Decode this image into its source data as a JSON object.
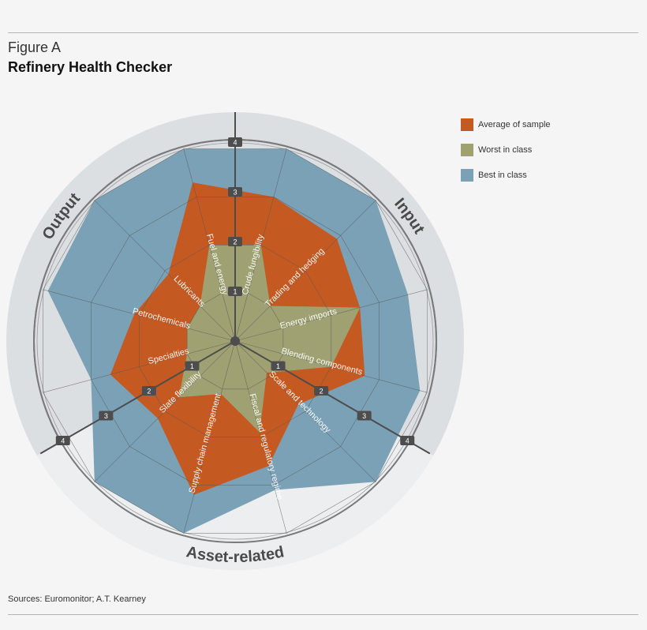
{
  "figure": {
    "label": "Figure A",
    "title": "Refinery Health Checker",
    "sources": "Sources: Euromonitor; A.T. Kearney"
  },
  "legend": [
    {
      "label": "Average of sample",
      "color": "#c45a22"
    },
    {
      "label": "Worst in class",
      "color": "#9fa173"
    },
    {
      "label": "Best in class",
      "color": "#7ba1b7"
    }
  ],
  "sections": [
    {
      "label": "Input"
    },
    {
      "label": "Asset-related"
    },
    {
      "label": "Output"
    }
  ],
  "ticks": [
    "1",
    "2",
    "3",
    "4"
  ],
  "chart_data": {
    "type": "radar",
    "title": "Refinery Health Checker",
    "categories": [
      "Crude fungibility",
      "Trading and hedging",
      "Energy imports",
      "Blending components",
      "Scale and technology",
      "Fiscal and regulatory regime",
      "Supply chain management",
      "Slate flexibility",
      "Specialties",
      "Petrochemicals",
      "Lubricants",
      "Fuel and energy"
    ],
    "groups": {
      "Input": [
        "Crude fungibility",
        "Trading and hedging",
        "Energy imports",
        "Blending components"
      ],
      "Asset-related": [
        "Scale and technology",
        "Fiscal and regulatory regime",
        "Supply chain management",
        "Slate flexibility"
      ],
      "Output": [
        "Specialties",
        "Petrochemicals",
        "Lubricants",
        "Fuel and energy"
      ]
    },
    "series": [
      {
        "name": "Best in class",
        "color": "#7ba1b7",
        "values": [
          4.0,
          4.0,
          3.6,
          3.85,
          4.0,
          3.1,
          4.0,
          4.0,
          3.0,
          3.9,
          4.0,
          4.0
        ]
      },
      {
        "name": "Average of sample",
        "color": "#c45a22",
        "values": [
          3.0,
          2.9,
          2.6,
          2.7,
          1.8,
          2.6,
          3.2,
          2.2,
          2.6,
          2.1,
          1.9,
          3.3
        ]
      },
      {
        "name": "Worst in class",
        "color": "#9fa173",
        "values": [
          2.0,
          1.0,
          2.6,
          2.0,
          0.9,
          1.9,
          1.1,
          1.6,
          1.0,
          1.0,
          1.0,
          2.0
        ]
      }
    ],
    "rlim": [
      0,
      4
    ],
    "rticks": [
      1,
      2,
      3,
      4
    ],
    "grid": true,
    "legend_position": "top-right"
  }
}
